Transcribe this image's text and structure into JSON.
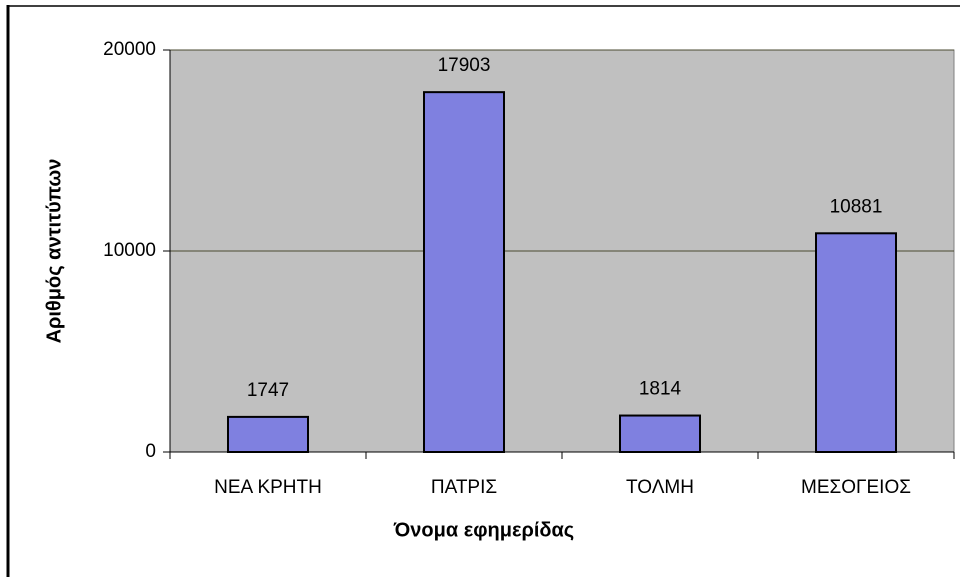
{
  "chart_data": {
    "type": "bar",
    "x_label": "Όνομα εφημερίδας",
    "y_label": "Αριθμός αντιτύπων",
    "categories": [
      "ΝΕΑ ΚΡΗΤΗ",
      "ΠΑΤΡΙΣ",
      "ΤΟΛΜΗ",
      "ΜΕΣΟΓΕΙΟΣ"
    ],
    "values": [
      1747,
      17903,
      1814,
      10881
    ],
    "color": "#7f80e0",
    "ylim": [
      0,
      20000
    ],
    "yticks": [
      0,
      10000,
      20000
    ],
    "grid": true
  }
}
